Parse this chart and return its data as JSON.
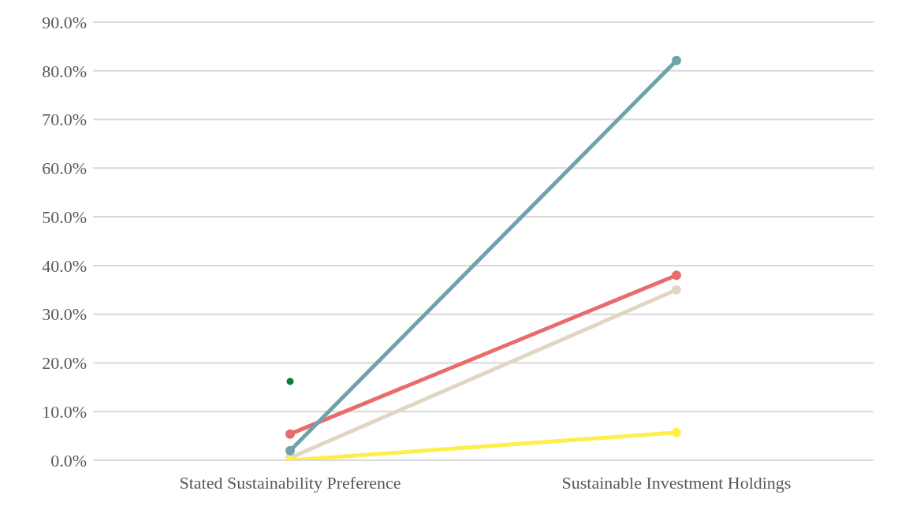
{
  "chart_data": {
    "type": "line",
    "categories": [
      "Stated Sustainability Preference",
      "Sustainable Investment Holdings"
    ],
    "series": [
      {
        "color": "#e96b6b",
        "values": [
          5.4,
          38.0
        ]
      },
      {
        "color": "#e0d6c2",
        "values": [
          0.5,
          35.0
        ]
      },
      {
        "color": "#ffee4a",
        "values": [
          0.0,
          5.7
        ]
      },
      {
        "color": "#6fa3ab",
        "values": [
          2.0,
          82.1
        ]
      },
      {
        "type": "scatter",
        "color": "#08802f",
        "values": [
          16.2,
          null
        ]
      }
    ],
    "ylim": [
      0,
      90
    ],
    "yticks": [
      {
        "value": 0,
        "label": "0.0%"
      },
      {
        "value": 10,
        "label": "10.0%"
      },
      {
        "value": 20,
        "label": "20.0%"
      },
      {
        "value": 30,
        "label": "30.0%"
      },
      {
        "value": 40,
        "label": "40.0%"
      },
      {
        "value": 50,
        "label": "50.0%"
      },
      {
        "value": 60,
        "label": "60.0%"
      },
      {
        "value": 70,
        "label": "70.0%"
      },
      {
        "value": 80,
        "label": "80.0%"
      },
      {
        "value": 90,
        "label": "90.0%"
      }
    ],
    "grid": "y",
    "marker": "circle",
    "line_style": "solid"
  }
}
